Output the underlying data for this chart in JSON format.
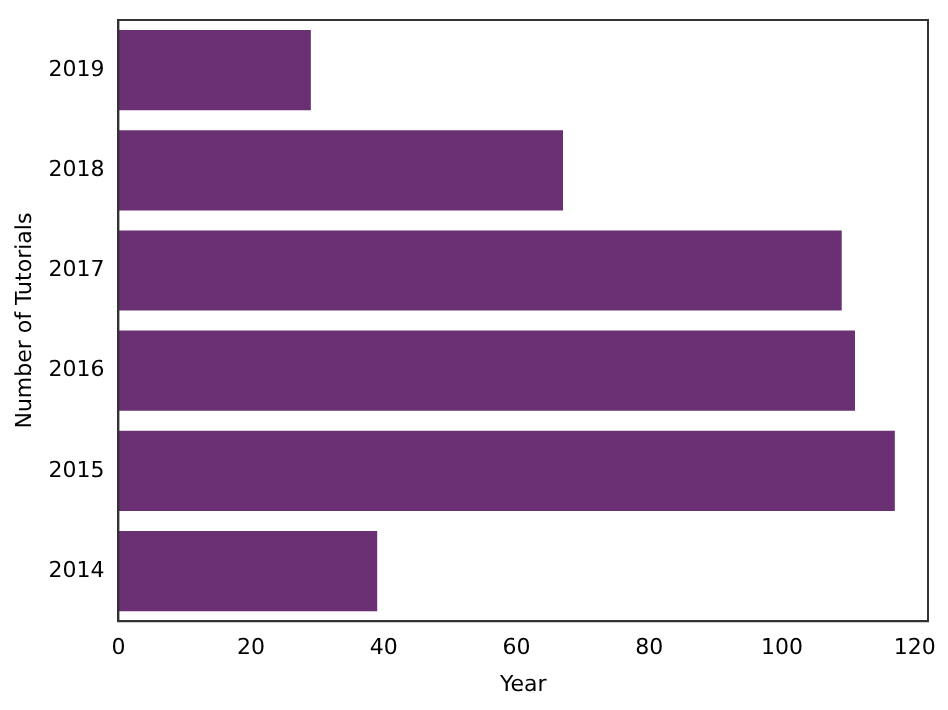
{
  "chart_data": {
    "type": "bar",
    "orientation": "horizontal",
    "xlabel": "Year",
    "ylabel": "Number of Tutorials",
    "categories": [
      "2019",
      "2018",
      "2017",
      "2016",
      "2015",
      "2014"
    ],
    "values": [
      29,
      67,
      109,
      111,
      117,
      39
    ],
    "color": "#6b3074",
    "xlim": [
      0,
      122
    ],
    "xticks": [
      0,
      20,
      40,
      60,
      80,
      100,
      120
    ],
    "grid": false,
    "legend": false
  }
}
